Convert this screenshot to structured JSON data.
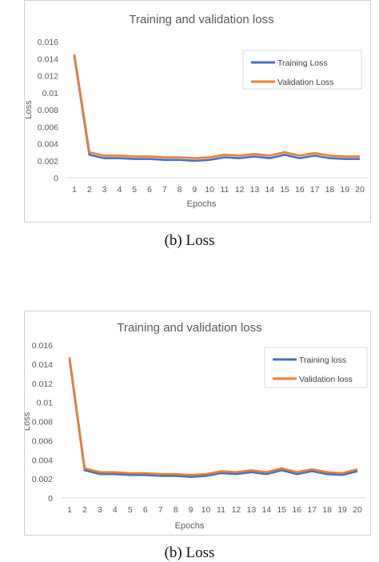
{
  "chart_data": [
    {
      "type": "line",
      "title": "Training and validation loss",
      "xlabel": "Epochs",
      "ylabel": "Loss",
      "x": [
        1,
        2,
        3,
        4,
        5,
        6,
        7,
        8,
        9,
        10,
        11,
        12,
        13,
        14,
        15,
        16,
        17,
        18,
        19,
        20
      ],
      "ylim": [
        0,
        0.016
      ],
      "yticks": [
        "0",
        "0.002",
        "0.004",
        "0.006",
        "0.008",
        "0.01",
        "0.012",
        "0.014",
        "0.016"
      ],
      "grid": false,
      "legend_position": "top-right",
      "series": [
        {
          "name": "Training Loss",
          "color": "#4472c4",
          "values": [
            0.0143,
            0.0027,
            0.0023,
            0.0023,
            0.0022,
            0.0022,
            0.0021,
            0.0021,
            0.002,
            0.0021,
            0.0024,
            0.0023,
            0.0025,
            0.0023,
            0.0027,
            0.0023,
            0.0026,
            0.0023,
            0.0022,
            0.0022
          ]
        },
        {
          "name": "Validation Loss",
          "color": "#ed7d31",
          "values": [
            0.0145,
            0.003,
            0.0026,
            0.0026,
            0.0025,
            0.0025,
            0.0024,
            0.0024,
            0.0023,
            0.0024,
            0.0027,
            0.0026,
            0.0028,
            0.0026,
            0.003,
            0.0026,
            0.0029,
            0.0026,
            0.0025,
            0.0025
          ]
        }
      ],
      "caption": "(b) Loss"
    },
    {
      "type": "line",
      "title": "Training and validation loss",
      "xlabel": "Epochs",
      "ylabel": "Loss",
      "x": [
        1,
        2,
        3,
        4,
        5,
        6,
        7,
        8,
        9,
        10,
        11,
        12,
        13,
        14,
        15,
        16,
        17,
        18,
        19,
        20
      ],
      "ylim": [
        0,
        0.016
      ],
      "yticks": [
        "0",
        "0.002",
        "0.004",
        "0.006",
        "0.008",
        "0.01",
        "0.012",
        "0.014",
        "0.016"
      ],
      "grid": false,
      "legend_position": "top-right",
      "series": [
        {
          "name": "Training loss",
          "color": "#4472c4",
          "values": [
            0.0145,
            0.0029,
            0.0025,
            0.0025,
            0.0024,
            0.0024,
            0.0023,
            0.0023,
            0.0022,
            0.0023,
            0.0026,
            0.0025,
            0.0027,
            0.0025,
            0.0029,
            0.0025,
            0.0028,
            0.0025,
            0.0024,
            0.0028
          ]
        },
        {
          "name": "Validation loss",
          "color": "#ed7d31",
          "values": [
            0.0147,
            0.0031,
            0.0027,
            0.0027,
            0.0026,
            0.0026,
            0.0025,
            0.0025,
            0.0024,
            0.0025,
            0.0028,
            0.0027,
            0.0029,
            0.0027,
            0.0031,
            0.0027,
            0.003,
            0.0027,
            0.0026,
            0.003
          ]
        }
      ],
      "caption": "(b) Loss"
    }
  ]
}
